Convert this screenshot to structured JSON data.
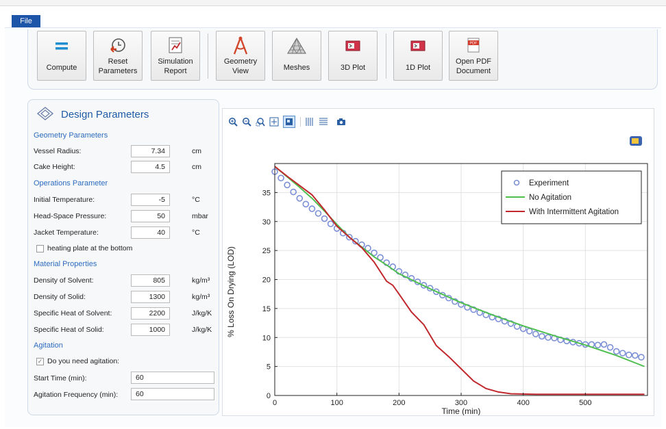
{
  "file_tab": "File",
  "ribbon": {
    "buttons": [
      {
        "label": "Compute",
        "icon": "equals-icon"
      },
      {
        "label": "Reset\nParameters",
        "icon": "reset-clock-icon"
      },
      {
        "label": "Simulation\nReport",
        "icon": "report-icon"
      },
      {
        "label": "Geometry\nView",
        "icon": "geometry-compass-icon"
      },
      {
        "label": "Meshes",
        "icon": "mesh-triangle-icon"
      },
      {
        "label": "3D Plot",
        "icon": "plot-3d-icon"
      },
      {
        "label": "1D Plot",
        "icon": "plot-1d-icon"
      },
      {
        "label": "Open PDF\nDocument",
        "icon": "pdf-icon"
      }
    ]
  },
  "panel": {
    "title": "Design Parameters",
    "geometry_section": "Geometry Parameters",
    "vessel_radius": {
      "label": "Vessel Radius:",
      "value": "7.34",
      "unit": "cm"
    },
    "cake_height": {
      "label": "Cake Height:",
      "value": "4.5",
      "unit": "cm"
    },
    "operations_section": "Operations Parameter",
    "initial_temp": {
      "label": "Initial Temperature:",
      "value": "-5",
      "unit": "°C"
    },
    "headspace_pressure": {
      "label": "Head-Space Pressure:",
      "value": "50",
      "unit": "mbar"
    },
    "jacket_temp": {
      "label": "Jacket Temperature:",
      "value": "40",
      "unit": "°C"
    },
    "heating_plate": {
      "label": "heating plate at the bottom",
      "checked": false
    },
    "material_section": "Material Properties",
    "density_solvent": {
      "label": "Density of Solvent:",
      "value": "805",
      "unit": "kg/m³"
    },
    "density_solid": {
      "label": "Density of Solid:",
      "value": "1300",
      "unit": "kg/m³"
    },
    "heat_solvent": {
      "label": "Specific Heat of Solvent:",
      "value": "2200",
      "unit": "J/kg/K"
    },
    "heat_solid": {
      "label": "Specific Heat of Solid:",
      "value": "1000",
      "unit": "J/kg/K"
    },
    "agitation_section": "Agitation",
    "need_agitation": {
      "label": "Do you need agitation:",
      "checked": true
    },
    "start_time": {
      "label": "Start Time (min):",
      "value": "60"
    },
    "agitation_freq": {
      "label": "Agitation Frequency (min):",
      "value": "60"
    }
  },
  "plot_toolbar": [
    "zoom-in-icon",
    "zoom-out-icon",
    "zoom-box-icon",
    "zoom-extents-icon",
    "scene-light-icon",
    "grid-vertical-icon",
    "grid-horizontal-icon",
    "camera-icon"
  ],
  "chart_data": {
    "type": "line",
    "xlabel": "Time (min)",
    "ylabel": "% Loss On Drying (LOD)",
    "xlim": [
      0,
      600
    ],
    "ylim": [
      0,
      40
    ],
    "xticks": [
      0,
      100,
      200,
      300,
      400,
      500
    ],
    "yticks": [
      0,
      5,
      10,
      15,
      20,
      25,
      30,
      35
    ],
    "grid": true,
    "legend_position": "top-right",
    "series": [
      {
        "name": "Experiment",
        "style": "markers",
        "color": "#7b8fd6",
        "x": [
          0,
          10,
          20,
          30,
          40,
          50,
          60,
          70,
          80,
          90,
          100,
          110,
          120,
          130,
          140,
          150,
          160,
          170,
          180,
          190,
          200,
          210,
          220,
          230,
          240,
          250,
          260,
          270,
          280,
          290,
          300,
          310,
          320,
          330,
          340,
          350,
          360,
          370,
          380,
          390,
          400,
          410,
          420,
          430,
          440,
          450,
          460,
          470,
          480,
          490,
          500,
          510,
          520,
          530,
          540,
          550,
          560,
          570,
          580,
          590
        ],
        "y": [
          38.6,
          37.5,
          36.3,
          35.1,
          34.0,
          33.0,
          32.2,
          31.4,
          30.5,
          29.6,
          28.8,
          28.0,
          27.3,
          26.6,
          26.0,
          25.4,
          24.6,
          23.8,
          22.9,
          22.2,
          21.4,
          20.8,
          20.2,
          19.6,
          19.0,
          18.5,
          17.9,
          17.3,
          16.8,
          16.2,
          15.7,
          15.2,
          14.8,
          14.3,
          13.9,
          13.5,
          13.2,
          12.8,
          12.4,
          11.9,
          11.5,
          11.1,
          10.6,
          10.2,
          10.0,
          9.9,
          9.6,
          9.4,
          9.2,
          9.0,
          8.8,
          8.8,
          8.7,
          8.8,
          8.3,
          7.6,
          7.3,
          7.0,
          6.9,
          6.6
        ]
      },
      {
        "name": "No Agitation",
        "style": "line",
        "color": "#4fbf4f",
        "x": [
          0,
          20,
          40,
          60,
          80,
          100,
          120,
          140,
          160,
          180,
          200,
          250,
          300,
          350,
          400,
          450,
          500,
          550,
          595
        ],
        "y": [
          39.5,
          37.7,
          35.9,
          34.0,
          31.8,
          29.5,
          27.3,
          25.6,
          23.9,
          22.5,
          21.0,
          18.4,
          16.0,
          13.9,
          12.0,
          10.3,
          8.7,
          6.9,
          5.0
        ]
      },
      {
        "name": "With Intermittent Agitation",
        "style": "line",
        "color": "#c0282d",
        "x": [
          0,
          20,
          40,
          60,
          80,
          100,
          120,
          140,
          160,
          180,
          190,
          200,
          220,
          240,
          260,
          280,
          300,
          320,
          340,
          360,
          380,
          420,
          500,
          595
        ],
        "y": [
          39.5,
          37.8,
          36.2,
          34.6,
          32.0,
          29.2,
          27.3,
          25.5,
          23.0,
          19.7,
          19.0,
          17.5,
          14.4,
          12.2,
          8.6,
          6.7,
          4.6,
          2.5,
          1.2,
          0.6,
          0.3,
          0.2,
          0.2,
          0.2
        ]
      }
    ]
  }
}
